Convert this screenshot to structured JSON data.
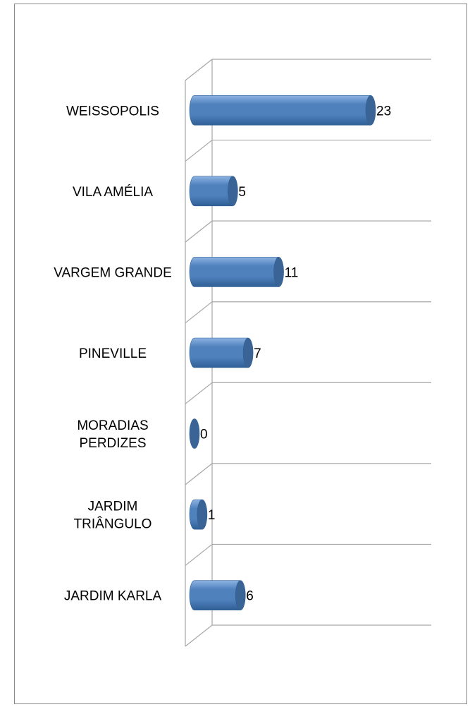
{
  "chart_data": {
    "type": "bar",
    "orientation": "horizontal",
    "style": "3d-cylinder",
    "categories": [
      "WEISSOPOLIS",
      "VILA AMÉLIA",
      "VARGEM GRANDE",
      "PINEVILLE",
      "MORADIAS PERDIZES",
      "JARDIM TRIÂNGULO",
      "JARDIM KARLA"
    ],
    "category_label_lines": [
      [
        "WEISSOPOLIS"
      ],
      [
        "VILA AMÉLIA"
      ],
      [
        "VARGEM GRANDE"
      ],
      [
        "PINEVILLE"
      ],
      [
        "MORADIAS",
        "PERDIZES"
      ],
      [
        "JARDIM",
        "TRIÂNGULO"
      ],
      [
        "JARDIM KARLA"
      ]
    ],
    "values": [
      23,
      5,
      11,
      7,
      0,
      1,
      6
    ],
    "data_labels": [
      "23",
      "5",
      "11",
      "7",
      "0",
      "1",
      "6"
    ],
    "xlim": [
      0,
      30
    ],
    "title": "",
    "xlabel": "",
    "ylabel": "",
    "grid": true,
    "legend": "none",
    "colors": {
      "bar_body": "#4F81BD",
      "bar_highlight": "#8DB3E2",
      "bar_shadow": "#2F5F95",
      "bar_cap": "#3A6496",
      "grid": "#A6A6A6"
    }
  }
}
